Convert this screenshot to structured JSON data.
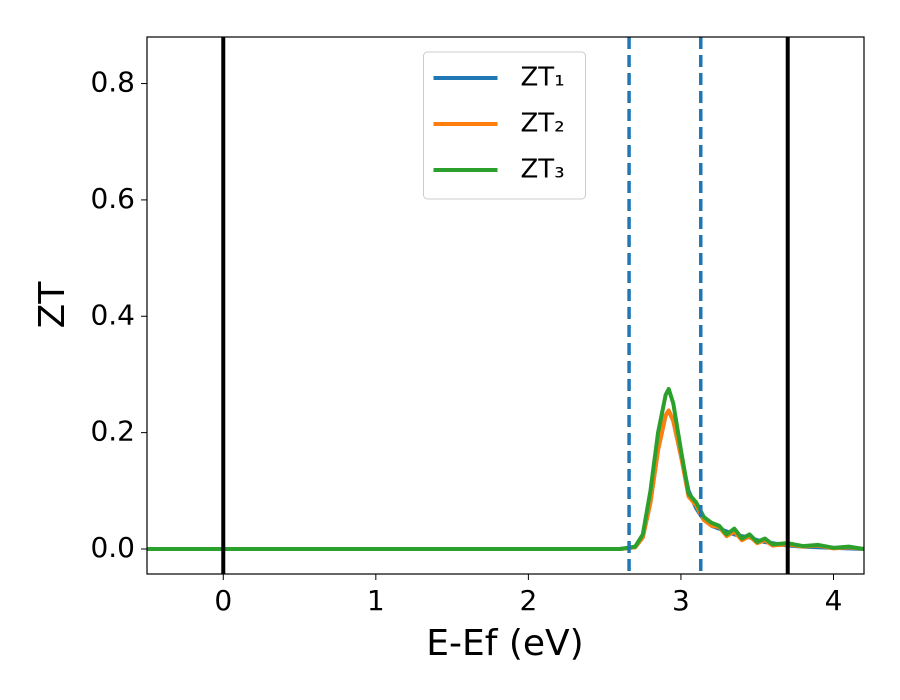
{
  "chart_data": {
    "type": "line",
    "xlabel": "E-Ef (eV)",
    "ylabel": "ZT",
    "x": [
      -0.5,
      0,
      1,
      2,
      2.6,
      2.7,
      2.75,
      2.8,
      2.85,
      2.9,
      2.92,
      2.95,
      3.0,
      3.05,
      3.1,
      3.15,
      3.2,
      3.25,
      3.3,
      3.35,
      3.4,
      3.45,
      3.5,
      3.55,
      3.6,
      3.7,
      3.8,
      3.9,
      4.0,
      4.1,
      4.2
    ],
    "series": [
      {
        "name": "ZT₁",
        "color": "#1f77b4",
        "values": [
          0,
          0,
          0,
          0,
          0,
          0.003,
          0.02,
          0.08,
          0.17,
          0.23,
          0.238,
          0.22,
          0.16,
          0.1,
          0.07,
          0.05,
          0.04,
          0.035,
          0.03,
          0.025,
          0.022,
          0.02,
          0.015,
          0.012,
          0.01,
          0.006,
          0.004,
          0.003,
          0.002,
          0.001,
          0
        ]
      },
      {
        "name": "ZT₂",
        "color": "#ff7f0e",
        "values": [
          0,
          0,
          0,
          0,
          0,
          0.003,
          0.02,
          0.08,
          0.17,
          0.23,
          0.238,
          0.22,
          0.16,
          0.09,
          0.075,
          0.05,
          0.04,
          0.038,
          0.022,
          0.03,
          0.015,
          0.022,
          0.01,
          0.015,
          0.006,
          0.008,
          0.004,
          0.006,
          0.001,
          0.003,
          0
        ]
      },
      {
        "name": "ZT₃",
        "color": "#2ca02c",
        "values": [
          0,
          0,
          0,
          0,
          0,
          0.004,
          0.025,
          0.1,
          0.2,
          0.265,
          0.275,
          0.25,
          0.17,
          0.095,
          0.08,
          0.055,
          0.045,
          0.04,
          0.025,
          0.035,
          0.018,
          0.025,
          0.012,
          0.018,
          0.008,
          0.01,
          0.005,
          0.007,
          0.002,
          0.004,
          0
        ]
      }
    ],
    "vlines": [
      {
        "x": 0,
        "color": "#000000",
        "style": "solid"
      },
      {
        "x": 3.7,
        "color": "#000000",
        "style": "solid"
      },
      {
        "x": 2.66,
        "color": "#1f77b4",
        "style": "dashed"
      },
      {
        "x": 3.13,
        "color": "#1f77b4",
        "style": "dashed"
      }
    ],
    "xlim": [
      -0.5,
      4.2
    ],
    "xticks": [
      0,
      1,
      2,
      3,
      4
    ],
    "ylim": [
      -0.043,
      0.88
    ],
    "yticks": [
      {
        "value": 0,
        "label": "0.0"
      },
      0.2,
      0.4,
      0.6,
      0.8
    ],
    "grid": false,
    "legend": "upper center"
  }
}
